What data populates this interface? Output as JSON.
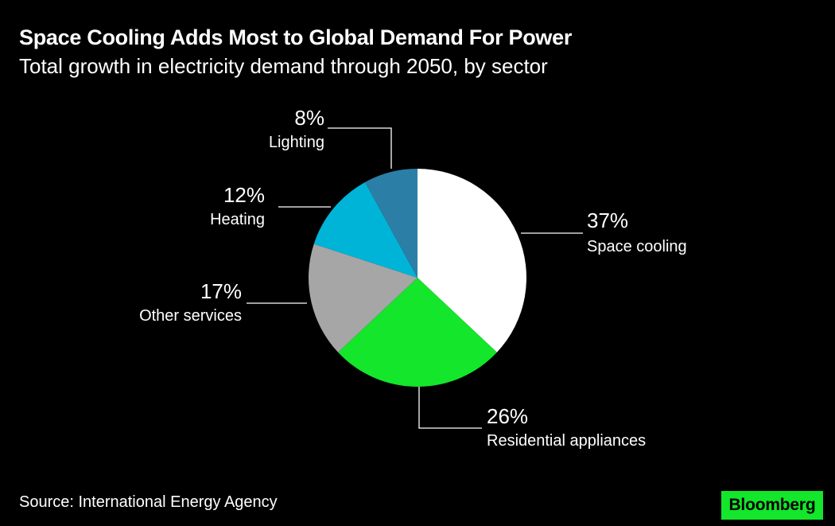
{
  "header": {
    "title": "Space Cooling Adds Most to Global Demand For Power",
    "subtitle": "Total growth in electricity demand through 2050, by sector"
  },
  "chart_data": {
    "type": "pie",
    "title": "Space Cooling Adds Most to Global Demand For Power",
    "subtitle": "Total growth in electricity demand through 2050, by sector",
    "unit": "%",
    "start": "12 o'clock",
    "direction": "clockwise",
    "slices": [
      {
        "label": "Space cooling",
        "value": 37,
        "value_label": "37%",
        "color": "#ffffff"
      },
      {
        "label": "Residential appliances",
        "value": 26,
        "value_label": "26%",
        "color": "#13e62b"
      },
      {
        "label": "Other services",
        "value": 17,
        "value_label": "17%",
        "color": "#a6a6a6"
      },
      {
        "label": "Heating",
        "value": 12,
        "value_label": "12%",
        "color": "#00b4d8"
      },
      {
        "label": "Lighting",
        "value": 8,
        "value_label": "8%",
        "color": "#2b7fa6"
      }
    ]
  },
  "footer": {
    "source": "Source: International Energy Agency",
    "brand": "Bloomberg",
    "brand_color": "#13e62b"
  }
}
